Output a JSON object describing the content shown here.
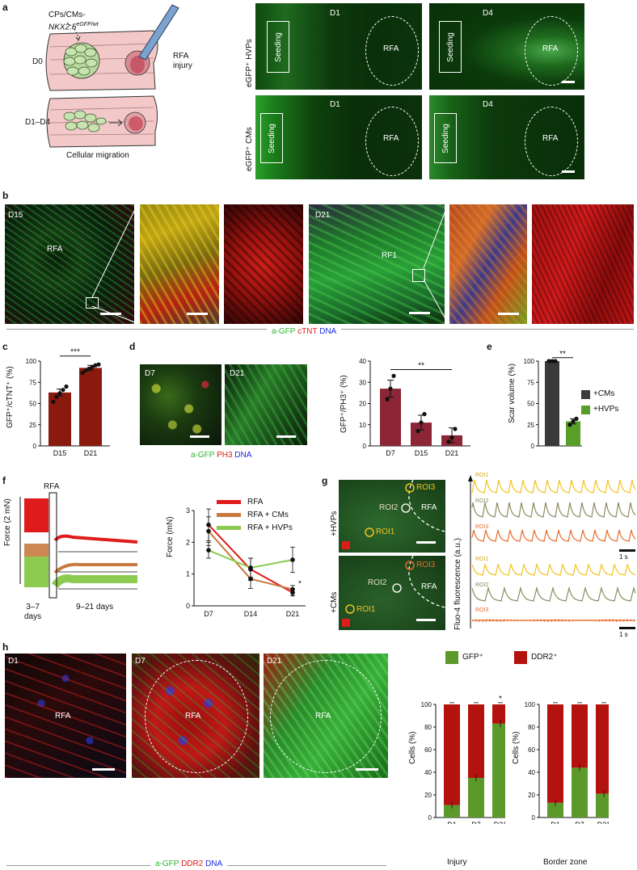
{
  "panels": {
    "a": {
      "label": "a",
      "cells_label_1": "CPs/CMs-",
      "cells_label_2": "NKX2.5",
      "cells_label_sup": "eGFP/wt",
      "injury_label_1": "RFA",
      "injury_label_2": "injury",
      "d0": "D0",
      "d1d4": "D1–D4",
      "migration": "Cellular migration",
      "row_hvps": "eGFP⁺ HVPs",
      "row_cms": "eGFP⁺ CMs",
      "day1": "D1",
      "day4": "D4",
      "seeding": "Seeding",
      "rfa": "RFA"
    },
    "b": {
      "label": "b",
      "d15": "D15",
      "d21": "D21",
      "rfa": "RFA",
      "rf1": "RF1",
      "stain_green": "a-GFP",
      "stain_red": "cTNT",
      "stain_blue": "DNA"
    },
    "c": {
      "label": "c",
      "ylabel": "GFP⁺/cTNT⁺ (%)",
      "sig": "***"
    },
    "d": {
      "label": "d",
      "d7": "D7",
      "d21": "D21",
      "stain_green": "a-GFP",
      "stain_red": "PH3",
      "stain_blue": "DNA",
      "ylabel": "GFP⁺/PH3⁺ (%)",
      "sig": "**"
    },
    "e": {
      "label": "e",
      "ylabel": "Scar volume (%)",
      "sig": "**",
      "legend_cms": "+CMs",
      "legend_hvps": "+HVPs"
    },
    "f": {
      "label": "f",
      "rfa": "RFA",
      "force_scale": "Force (2 mN)",
      "days_a": "3–7",
      "days_b": "days",
      "days_c": "9–21 days",
      "ylabel": "Force (mN)",
      "legend": [
        "RFA",
        "RFA + CMs",
        "RFA + HVPs"
      ],
      "star": "*"
    },
    "g": {
      "label": "g",
      "hvps": "+HVPs",
      "cms": "+CMs",
      "roi1": "ROI1",
      "roi2": "ROI2",
      "roi3": "ROI3",
      "rfa": "RFA",
      "ylabel": "Fluo-4 fluorescence (a.u.)",
      "scale": "1 s"
    },
    "h": {
      "label": "h",
      "d1": "D1",
      "d7": "D7",
      "d21": "D21",
      "rfa": "RFA",
      "stain_green": "a-GFP",
      "stain_red": "DDR2",
      "stain_blue": "DNA",
      "legend_gfp": "GFP⁺",
      "legend_ddr2": "DDR2⁺",
      "ylabel": "Cells (%)",
      "xgroup_injury": "Injury",
      "xgroup_border": "Border zone",
      "star": "*"
    }
  },
  "colors": {
    "c_bar": "#8b1a0e",
    "d_bar": "#8c2535",
    "e_cms": "#3a3a3a",
    "e_hvps": "#5a9e2a",
    "f_rfa": "#e01b1b",
    "f_cms": "#c87a3e",
    "f_hvps": "#8ccb50",
    "h_gfp": "#5b9a2a",
    "h_ddr2": "#b3120f",
    "roi_yellow": "#f2c21b",
    "roi_olive": "#8d8a62",
    "roi_orange": "#e86a2a"
  },
  "chart_data": [
    {
      "id": "c",
      "type": "bar",
      "categories": [
        "D15",
        "D21"
      ],
      "values": [
        63,
        92
      ],
      "errors": [
        4,
        3
      ],
      "points": [
        [
          52,
          58,
          62,
          66,
          70
        ],
        [
          86,
          89,
          91,
          93,
          95,
          96
        ]
      ],
      "ylabel": "GFP⁺/cTNT⁺ (%)",
      "ylim": [
        0,
        100
      ],
      "yticks": [
        "0",
        "25",
        "50",
        "75",
        "100"
      ],
      "significance": "***"
    },
    {
      "id": "d",
      "type": "bar",
      "categories": [
        "D7",
        "D15",
        "D21"
      ],
      "values": [
        27,
        11,
        5
      ],
      "errors": [
        4,
        3.5,
        3.5
      ],
      "points": [
        [
          22,
          27,
          33
        ],
        [
          7,
          11,
          15
        ],
        [
          2,
          4,
          8
        ]
      ],
      "ylabel": "GFP⁺/PH3⁺ (%)",
      "ylim": [
        0,
        40
      ],
      "yticks": [
        "0",
        "10",
        "20",
        "30",
        "40"
      ],
      "significance": "**"
    },
    {
      "id": "e",
      "type": "bar",
      "categories": [
        "+CMs",
        "+HVPs"
      ],
      "values": [
        100,
        29
      ],
      "errors": [
        0.5,
        3
      ],
      "points": [
        [
          100,
          100,
          100
        ],
        [
          25,
          29,
          32
        ]
      ],
      "ylabel": "Scar volume (%)",
      "ylim": [
        0,
        100
      ],
      "yticks": [
        "0",
        "25",
        "50",
        "75",
        "100"
      ],
      "significance": "**",
      "legend": "right"
    },
    {
      "id": "f",
      "type": "line",
      "categories": [
        "D7",
        "D14",
        "D21"
      ],
      "ylabel": "Force (mN)",
      "ylim": [
        0,
        3
      ],
      "yticks": [
        "0",
        "1",
        "2",
        "3"
      ],
      "series": [
        {
          "name": "RFA",
          "values": [
            2.55,
            1.15,
            0.42
          ],
          "errors": [
            0.5,
            0.35,
            0.1
          ]
        },
        {
          "name": "RFA + CMs",
          "values": [
            2.35,
            0.85,
            0.52
          ],
          "errors": [
            0.45,
            0.3,
            0.12
          ]
        },
        {
          "name": "RFA + HVPs",
          "values": [
            1.75,
            1.2,
            1.45
          ],
          "errors": [
            0.25,
            0.3,
            0.4
          ]
        }
      ]
    },
    {
      "id": "h_injury",
      "type": "bar",
      "categories": [
        "D1",
        "D7",
        "D21"
      ],
      "ylabel": "Cells (%)",
      "ylim": [
        0,
        100
      ],
      "yticks": [
        "0",
        "20",
        "40",
        "60",
        "80",
        "100"
      ],
      "xlabel": "Injury",
      "series": [
        {
          "name": "GFP⁺",
          "values": [
            11,
            35,
            83
          ]
        },
        {
          "name": "DDR2⁺",
          "values": [
            89,
            65,
            17
          ]
        }
      ]
    },
    {
      "id": "h_border",
      "type": "bar",
      "categories": [
        "D1",
        "D7",
        "D21"
      ],
      "ylabel": "Cells (%)",
      "ylim": [
        0,
        100
      ],
      "yticks": [
        "0",
        "20",
        "40",
        "60",
        "80",
        "100"
      ],
      "xlabel": "Border zone",
      "series": [
        {
          "name": "GFP⁺",
          "values": [
            13,
            44,
            21
          ]
        },
        {
          "name": "DDR2⁺",
          "values": [
            87,
            56,
            79
          ]
        }
      ]
    }
  ]
}
